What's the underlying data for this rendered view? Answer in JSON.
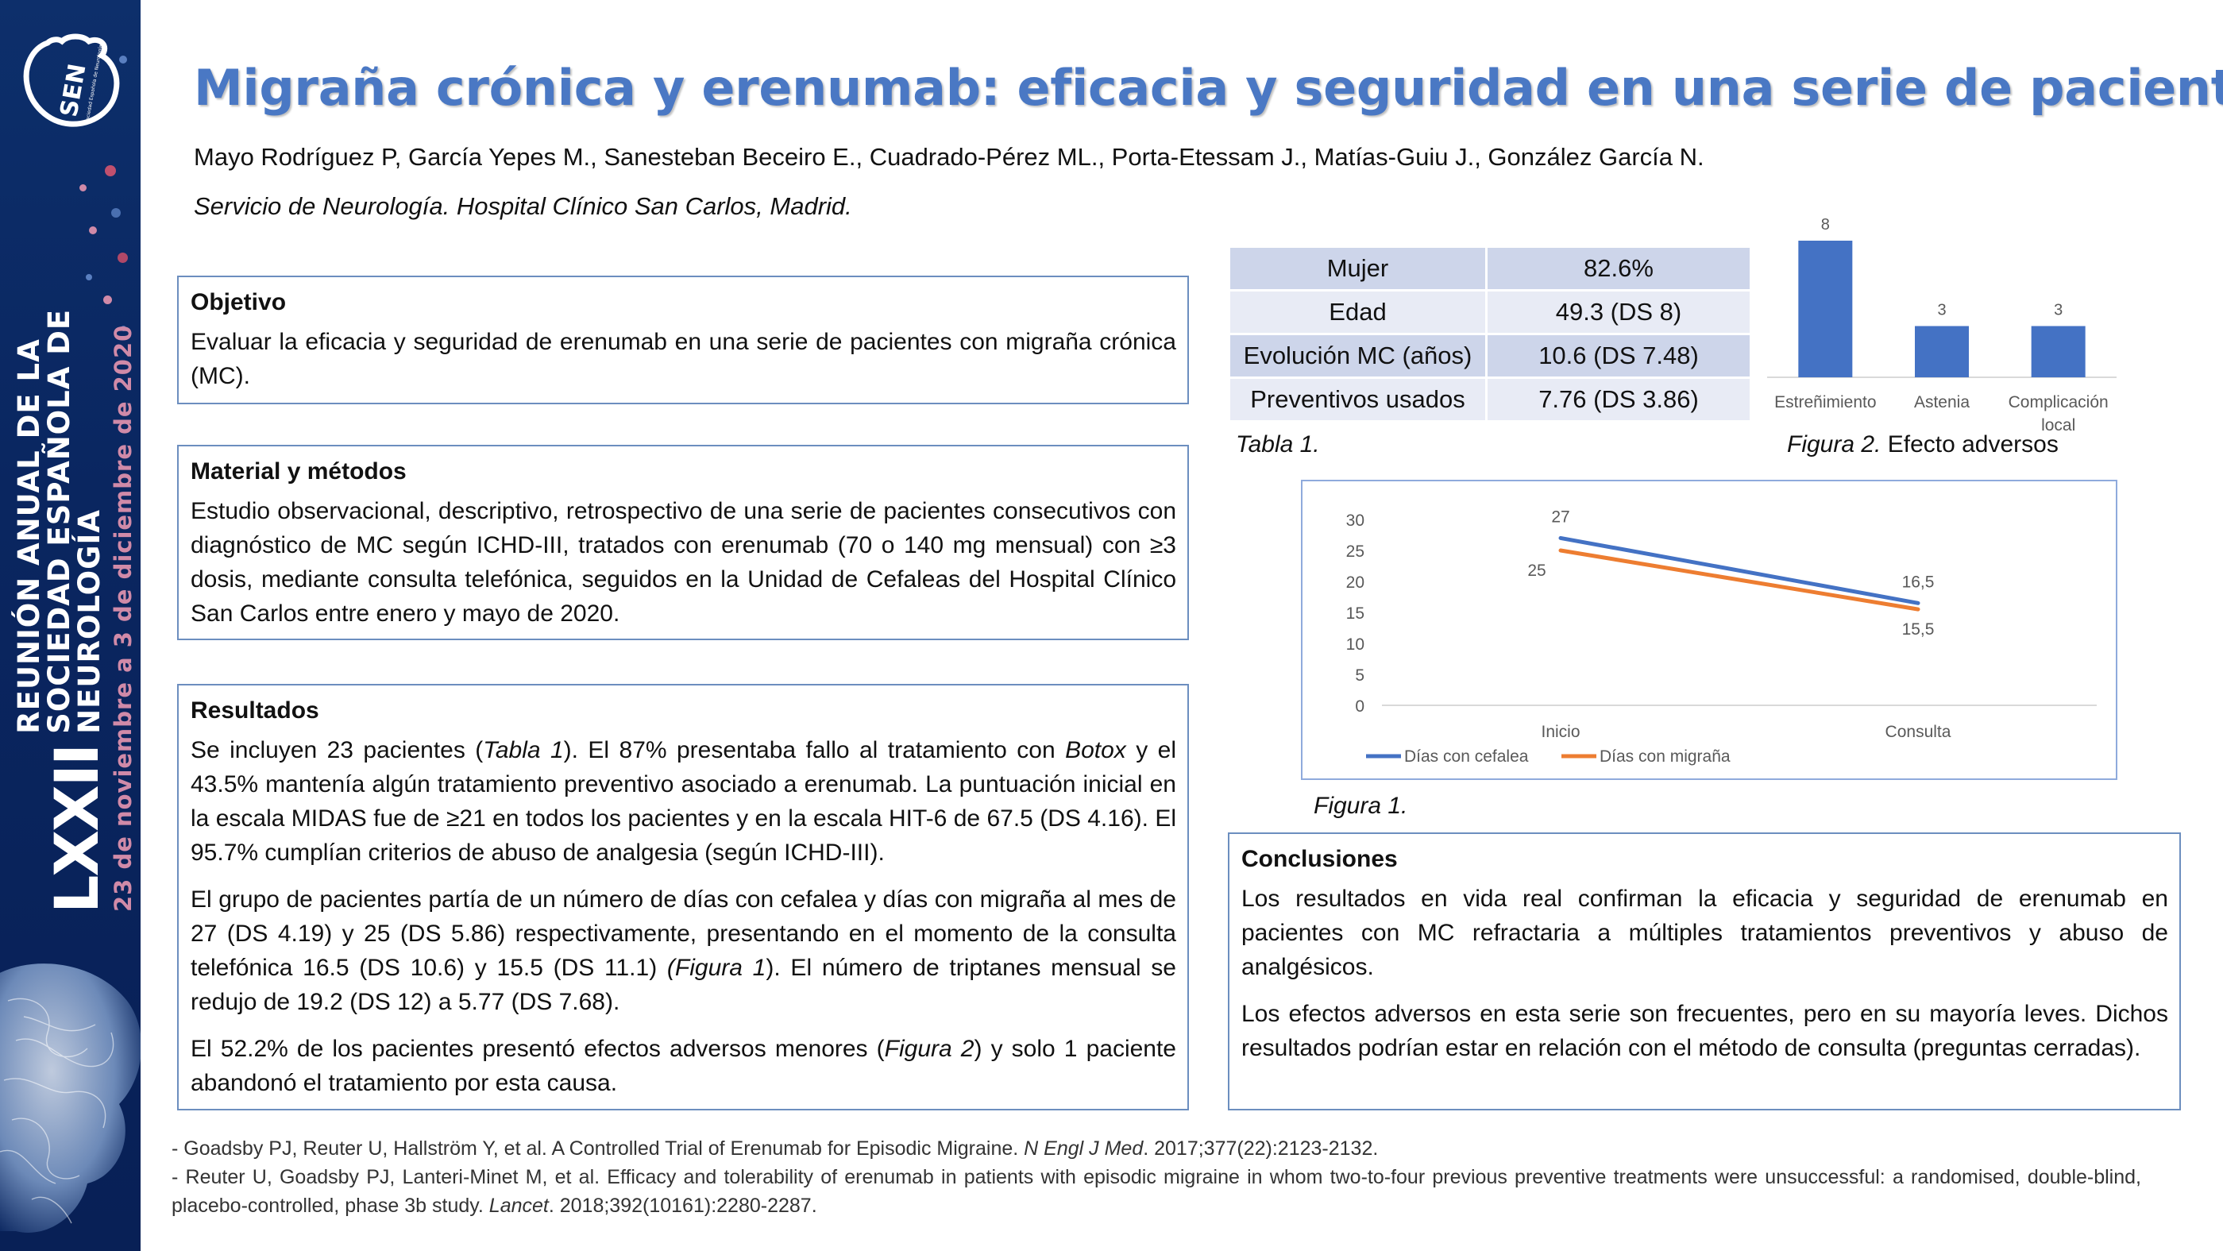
{
  "sidebar": {
    "logo_text": "SEN",
    "logo_subtext": "Sociedad Española de Neurología",
    "edition": "LXXII",
    "event_line1": "REUNIÓN ANUAL DE LA",
    "event_line2": "SOCIEDAD ESPAÑOLA DE NEUROLOGÍA",
    "dates": "23 de noviembre a 3 de diciembre de 2020",
    "accent_color": "#d08aa8",
    "background_color": "#0a2660"
  },
  "header": {
    "title": "Migraña crónica y erenumab: eficacia y seguridad en una serie de pacientes",
    "authors": "Mayo Rodríguez P, García Yepes M., Sanesteban Beceiro E., Cuadrado-Pérez ML., Porta-Etessam J., Matías-Guiu J., González García N.",
    "affiliation": "Servicio de Neurología. Hospital Clínico San Carlos, Madrid.",
    "title_color": "#4a78c4"
  },
  "objetivo": {
    "heading": "Objetivo",
    "text": "Evaluar la eficacia y seguridad de erenumab en una serie de pacientes con migraña crónica (MC)."
  },
  "metodos": {
    "heading": "Material y métodos",
    "text": "Estudio observacional, descriptivo, retrospectivo de una serie de pacientes consecutivos con diagnóstico de MC según ICHD-III, tratados con erenumab (70 o 140 mg mensual) con ≥3 dosis, mediante consulta telefónica, seguidos en la Unidad de Cefaleas del Hospital Clínico San Carlos entre enero y mayo de 2020."
  },
  "resultados": {
    "heading": "Resultados",
    "p1": {
      "a": "Se incluyen 23 pacientes (",
      "b": "Tabla 1",
      "c": "). El 87% presentaba fallo al tratamiento con ",
      "d": "Botox",
      "e": " y el 43.5% mantenía algún tratamiento preventivo asociado a erenumab. La puntuación inicial en la escala MIDAS fue de ≥21 en todos los pacientes y en la escala HIT-6 de 67.5 (DS 4.16). El 95.7% cumplían criterios de abuso de analgesia (según ICHD-III)."
    },
    "p2": {
      "a": "El grupo de pacientes partía de un número de días con cefalea y días con migraña al mes de 27 (DS 4.19) y 25 (DS 5.86) respectivamente, presentando en el momento de la consulta telefónica 16.5 (DS 10.6) y 15.5 (DS 11.1) ",
      "b": "(Figura 1",
      "c": "). El número de triptanes mensual se redujo de 19.2 (DS 12) a 5.77 (DS 7.68)."
    },
    "p3": {
      "a": "El 52.2% de los pacientes presentó efectos adversos menores (",
      "b": "Figura 2",
      "c": ") y solo 1 paciente abandonó el tratamiento por esta causa."
    }
  },
  "conclusiones": {
    "heading": "Conclusiones",
    "p1": "Los resultados en vida real confirman la eficacia y seguridad de erenumab en pacientes con MC refractaria a múltiples tratamientos preventivos y abuso de analgésicos.",
    "p2": "Los efectos adversos en esta serie son frecuentes, pero en su mayoría leves. Dichos resultados podrían estar en relación con el método de consulta (preguntas cerradas)."
  },
  "table1": {
    "rows": [
      {
        "label": "Mujer",
        "value": "82.6%"
      },
      {
        "label": "Edad",
        "value": "49.3 (DS 8)"
      },
      {
        "label": "Evolución MC (años)",
        "value": "10.6 (DS 7.48)"
      },
      {
        "label": "Preventivos usados",
        "value": "7.76 (DS 3.86)"
      }
    ],
    "caption": "Tabla 1."
  },
  "figure2_caption": {
    "label": "Figura 2.",
    "text": " Efecto adversos"
  },
  "figure1_caption": "Figura 1.",
  "chart_data": [
    {
      "type": "bar",
      "categories": [
        "Estreñimiento",
        "Astenia",
        "Complicación local"
      ],
      "values": [
        8,
        3,
        3
      ],
      "data_labels": [
        "8",
        "3",
        "3"
      ],
      "ylim": [
        0,
        8
      ],
      "grid": false,
      "color": "#4472c4"
    },
    {
      "type": "line",
      "categories": [
        "Inicio",
        "Consulta"
      ],
      "series": [
        {
          "name": "Días con cefalea",
          "values": [
            27,
            16.5
          ],
          "labels": [
            "27",
            "16,5"
          ],
          "color": "#4472c4"
        },
        {
          "name": "Días con migraña",
          "values": [
            25,
            15.5
          ],
          "labels": [
            "25",
            "15,5"
          ],
          "color": "#ed7d31"
        }
      ],
      "ylim": [
        0,
        30
      ],
      "yticks": [
        "0",
        "5",
        "10",
        "15",
        "20",
        "25",
        "30"
      ],
      "legend": "bottom-left",
      "grid": false
    }
  ],
  "references": [
    {
      "a": "- Goadsby PJ, Reuter U, Hallström Y, et al. A Controlled Trial of Erenumab for Episodic Migraine. ",
      "journal": "N Engl J Med",
      "b": ". 2017;377(22):2123-2132."
    },
    {
      "a": "- Reuter U, Goadsby PJ, Lanteri-Minet M, et al. Efficacy and tolerability of erenumab in patients with episodic migraine in whom two-to-four previous preventive treatments were unsuccessful: a randomised, double-blind, placebo-controlled, phase 3b study. ",
      "journal": "Lancet",
      "b": ". 2018;392(10161):2280-2287."
    }
  ]
}
